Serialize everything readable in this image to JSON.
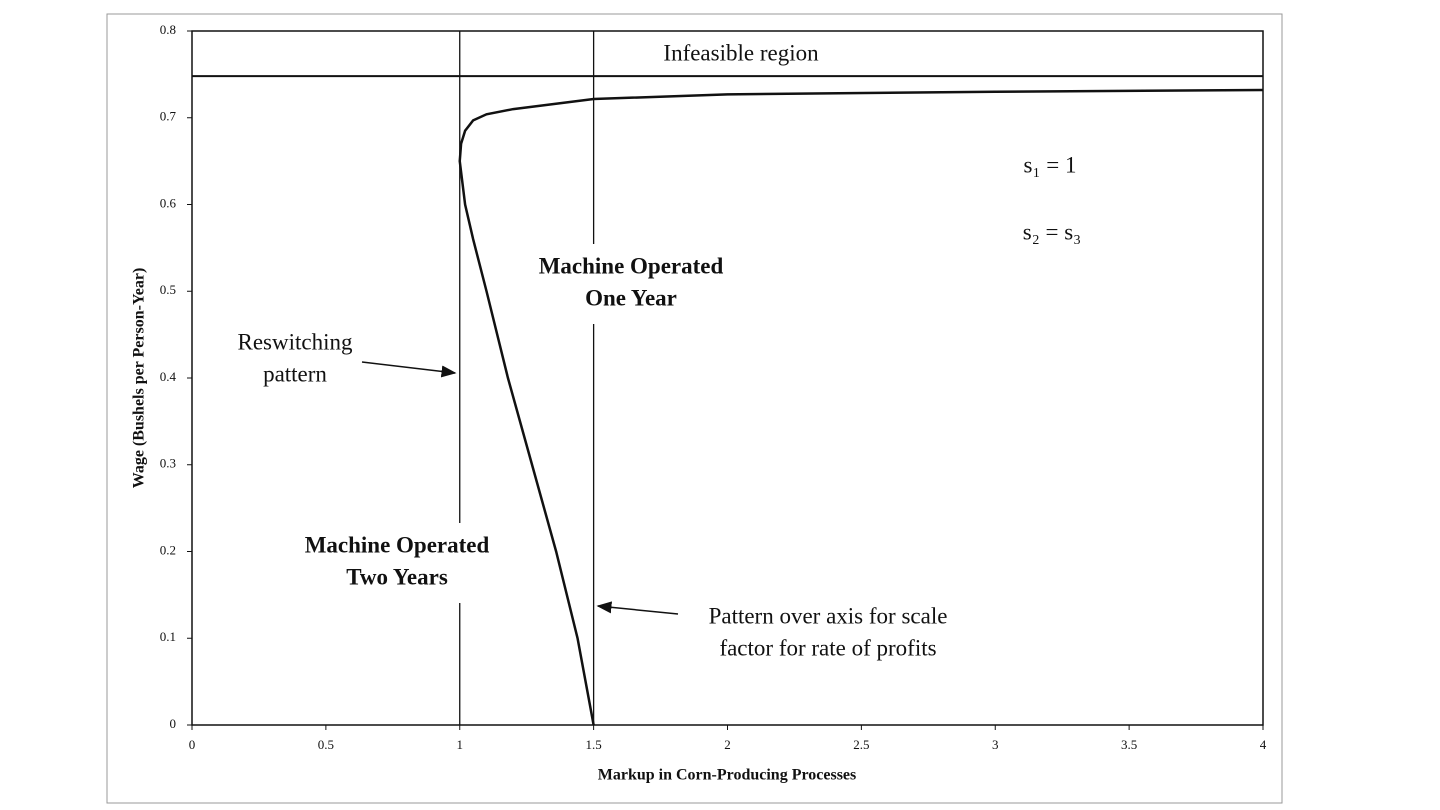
{
  "chart_data": {
    "type": "line",
    "xlabel": "Markup in Corn-Producing Processes",
    "ylabel": "Wage (Bushels per Person-Year)",
    "xlim": [
      0,
      4
    ],
    "ylim": [
      0,
      0.8
    ],
    "xticks": [
      0,
      0.5,
      1,
      1.5,
      2,
      2.5,
      3,
      3.5,
      4
    ],
    "yticks": [
      0,
      0.1,
      0.2,
      0.3,
      0.4,
      0.5,
      0.6,
      0.7,
      0.8
    ],
    "grid": false,
    "reference_lines": {
      "x": [
        1,
        1.5
      ],
      "y": [
        0.748
      ]
    },
    "series": [
      {
        "color": "#111111",
        "x": [
          1.5,
          1.44,
          1.36,
          1.27,
          1.18,
          1.1,
          1.05,
          1.02,
          1.0,
          1.005,
          1.02,
          1.05,
          1.1,
          1.2,
          1.5,
          2,
          3,
          4
        ],
        "values": [
          0,
          0.1,
          0.2,
          0.3,
          0.4,
          0.5,
          0.56,
          0.6,
          0.65,
          0.67,
          0.685,
          0.697,
          0.704,
          0.71,
          0.7216,
          0.727,
          0.73,
          0.732
        ]
      }
    ],
    "annotations": [
      {
        "lines": [
          "Infeasible region"
        ]
      },
      {
        "lines": [
          "Machine Operated",
          "One Year"
        ]
      },
      {
        "lines": [
          "Machine Operated",
          "Two Years"
        ]
      },
      {
        "lines": [
          "Reswitching",
          "pattern"
        ]
      },
      {
        "lines": [
          "Pattern over axis for scale",
          "factor for rate of profits"
        ]
      },
      {
        "lines": [
          "s₁ = 1"
        ]
      },
      {
        "lines": [
          "s₂ = s₃"
        ]
      }
    ]
  }
}
